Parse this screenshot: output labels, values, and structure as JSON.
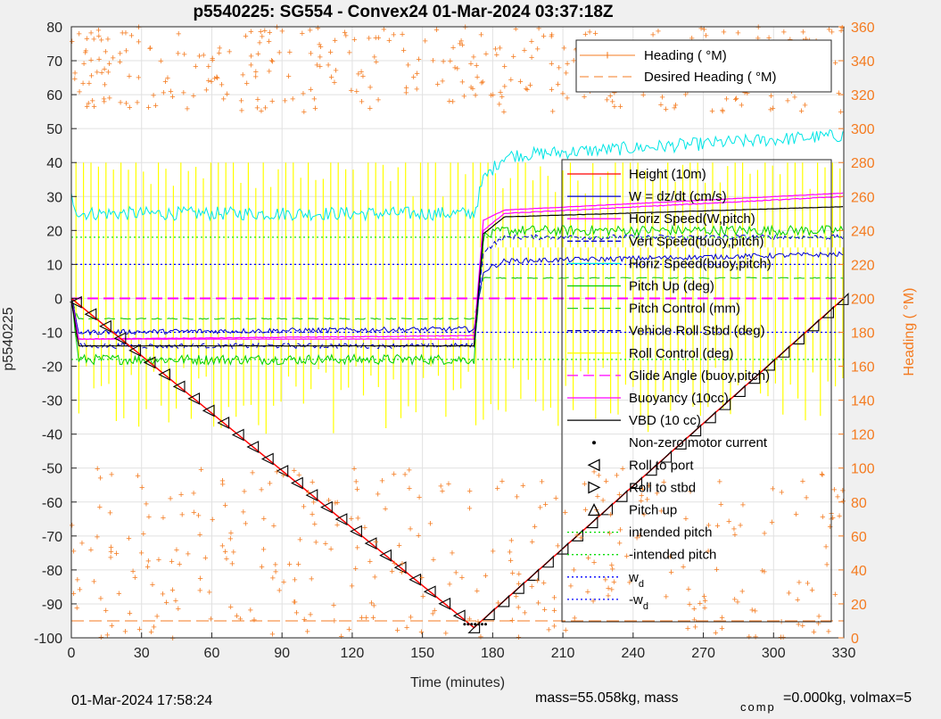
{
  "colors": {
    "figure_bg": "#f0f0f0",
    "axes_bg": "#ffffff",
    "grid": "#e1e1e1",
    "axis_text": "#262626",
    "right_axis": "#f47b20",
    "height": "#ff0000",
    "w": "#0000cc",
    "hspeed_w": "#ff00ff",
    "vspeed_buoy": "#0000cc",
    "hspeed_buoy": "#00e5e5",
    "pitch_up": "#00cc00",
    "pitch_control": "#22cc22",
    "roll": "#0000aa",
    "roll_control": "#ffff00",
    "glide_angle": "#ff00ff",
    "buoyancy": "#ff00ff",
    "vbd": "#000000",
    "motor": "#000000",
    "marker": "#000000",
    "intended_pitch": "#00dd00",
    "wd": "#0000ff",
    "heading": "#f47b20"
  },
  "figure": {
    "title": "p5540225: SG554 - Convex24 01-Mar-2024 03:37:18Z",
    "footer_left": "01-Mar-2024 17:58:24",
    "footer_right_a": "mass=55.058kg, mass",
    "footer_right_sub": "comp",
    "footer_right_b": "=0.000kg, volmax=5"
  },
  "chart_data": {
    "type": "line",
    "xlabel": "Time (minutes)",
    "ylabel_left": "p5540225",
    "ylabel_right": "Heading (  °M)",
    "xlim": [
      0,
      330
    ],
    "ylim_left": [
      -100,
      80
    ],
    "ylim_right": [
      0,
      360
    ],
    "xticks": [
      0,
      30,
      60,
      90,
      120,
      150,
      180,
      210,
      240,
      270,
      300,
      330
    ],
    "yticks_left": [
      -100,
      -90,
      -80,
      -70,
      -60,
      -50,
      -40,
      -30,
      -20,
      -10,
      0,
      10,
      20,
      30,
      40,
      50,
      60,
      70,
      80
    ],
    "yticks_right": [
      0,
      20,
      40,
      60,
      80,
      100,
      120,
      140,
      160,
      180,
      200,
      220,
      240,
      260,
      280,
      300,
      320,
      340,
      360
    ],
    "grid": true,
    "legend_top": {
      "position": "top-right",
      "entries": [
        "Heading (  °M)",
        "Desired Heading (    °M)"
      ]
    },
    "legend_main": {
      "position": "right",
      "entries": [
        "Height (10m)",
        "W = dz/dt (cm/s)",
        "Horiz Speed(W,pitch)",
        "Vert Speed(buoy,pitch)",
        "Horiz Speed(buoy,pitch)",
        "Pitch Up (deg)",
        "Pitch Control (mm)",
        "Vehicle Roll Stbd (deg)",
        "Roll Control (deg)",
        "Glide Angle (buoy,pitch)",
        "Buoyancy (10cc)",
        "VBD (10 cc)",
        "Non-zero motor current",
        "Roll to port",
        "Roll to stbd",
        "Pitch up",
        "intended pitch",
        "-intended pitch",
        "w",
        "-w"
      ],
      "subscript_entries": [
        "d",
        "d"
      ]
    },
    "series": [
      {
        "name": "Height (10m)",
        "x": [
          0,
          172,
          330
        ],
        "y": [
          0,
          -97,
          0
        ]
      },
      {
        "name": "W = dz/dt (cm/s)",
        "x": [
          0,
          3,
          172,
          176,
          185,
          330
        ],
        "y": [
          0,
          -10,
          -9,
          8,
          11,
          13
        ]
      },
      {
        "name": "Horiz Speed(W,pitch)",
        "x": [
          0,
          3,
          172,
          176,
          185,
          330
        ],
        "y": [
          0,
          -12,
          -11,
          20,
          25,
          30
        ]
      },
      {
        "name": "Vert Speed(buoy,pitch)",
        "x": [
          0,
          3,
          172,
          176,
          185,
          330
        ],
        "y": [
          0,
          -14,
          -14,
          14,
          18,
          18
        ]
      },
      {
        "name": "Horiz Speed(buoy,pitch)",
        "x": [
          0,
          3,
          172,
          176,
          185,
          330
        ],
        "y": [
          30,
          25,
          25,
          35,
          42,
          48
        ]
      },
      {
        "name": "Pitch Up (deg)",
        "x": [
          0,
          3,
          172,
          176,
          185,
          330
        ],
        "y": [
          0,
          -18,
          -18,
          18,
          20,
          20
        ]
      },
      {
        "name": "Pitch Control (mm)",
        "x": [
          0,
          3,
          172,
          176,
          185,
          330
        ],
        "y": [
          0,
          -6,
          -6,
          6,
          6,
          6
        ]
      },
      {
        "name": "Glide Angle (buoy,pitch)",
        "x": [
          0,
          330
        ],
        "y": [
          0,
          0
        ]
      },
      {
        "name": "Buoyancy (10cc)",
        "x": [
          0,
          3,
          172,
          176,
          185,
          330
        ],
        "y": [
          0,
          -12,
          -12,
          23,
          26,
          31
        ]
      },
      {
        "name": "VBD (10 cc)",
        "x": [
          0,
          3,
          172,
          176,
          185,
          330
        ],
        "y": [
          0,
          -14,
          -14,
          19,
          24,
          27
        ]
      },
      {
        "name": "intended pitch",
        "value": 18
      },
      {
        "name": "-intended pitch",
        "value": -18
      },
      {
        "name": "w",
        "value": 10
      },
      {
        "name": "-w",
        "value": -10
      }
    ]
  }
}
